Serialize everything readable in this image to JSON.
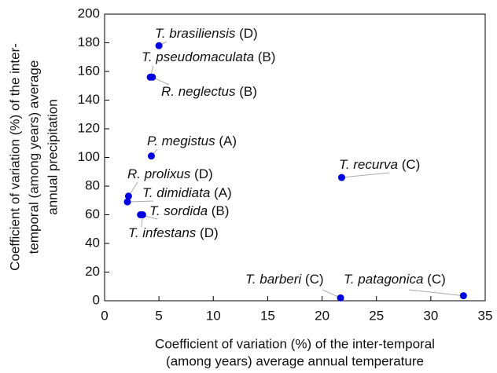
{
  "chart_data": {
    "type": "scatter",
    "x_label": [
      "Coefficient of variation (%) of the inter-temporal",
      "(among years) average annual temperature"
    ],
    "y_label": [
      "Coefficient of variation (%) of the inter-",
      "temporal (among years) average",
      "annual precipitation"
    ],
    "x": [
      5,
      4.2,
      4.4,
      4.3,
      21.8,
      2.2,
      2.1,
      3.3,
      3.5,
      21.7,
      33
    ],
    "values": [
      178,
      156,
      156,
      101,
      86,
      73,
      69,
      60,
      60,
      2,
      3.5
    ],
    "species": [
      "T. brasiliensis",
      "T. pseudomaculata",
      "R. neglectus",
      "P. megistus",
      "T. recurva",
      "R. prolixus",
      "T. dimidiata",
      "T. sordida",
      "T. infestans",
      "T. barberi",
      "T. patagonica"
    ],
    "groups": [
      "(D)",
      "(B)",
      "(B)",
      "(A)",
      "(C)",
      "(D)",
      "(A)",
      "(B)",
      "(D)",
      "(C)",
      "(C)"
    ],
    "color": "#0000e0",
    "xlim": [
      0,
      35
    ],
    "xticks": [
      0,
      5,
      10,
      15,
      20,
      25,
      30,
      35
    ],
    "ylim": [
      0,
      200
    ],
    "yticks": [
      0,
      20,
      40,
      60,
      80,
      100,
      120,
      140,
      160,
      180,
      200
    ],
    "grid": false
  }
}
